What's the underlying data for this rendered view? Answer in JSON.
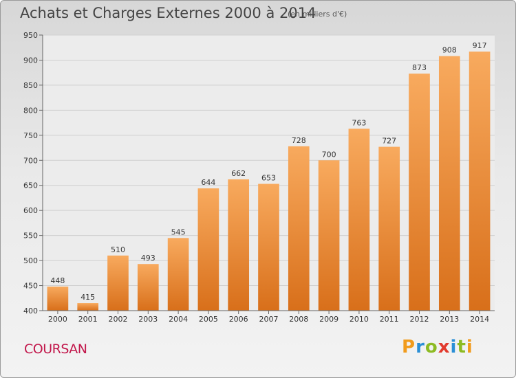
{
  "header": {
    "title": "Achats et Charges Externes 2000 à 2014",
    "unit": "(en milliers d'€)"
  },
  "footer": {
    "city": "COURSAN",
    "logo": "Proxiti"
  },
  "chart_data": {
    "type": "bar",
    "title": "Achats et Charges Externes 2000 à 2014",
    "subtitle": "(en milliers d'€)",
    "xlabel": "",
    "ylabel": "",
    "categories": [
      "2000",
      "2001",
      "2002",
      "2003",
      "2004",
      "2005",
      "2006",
      "2007",
      "2008",
      "2009",
      "2010",
      "2011",
      "2012",
      "2013",
      "2014"
    ],
    "values": [
      448,
      415,
      510,
      493,
      545,
      644,
      662,
      653,
      728,
      700,
      763,
      727,
      873,
      908,
      917
    ],
    "ylim": [
      400,
      950
    ],
    "yticks": [
      400,
      450,
      500,
      550,
      600,
      650,
      700,
      750,
      800,
      850,
      900,
      950
    ],
    "grid": true,
    "bar_color": "#f08a2c",
    "bar_color_light": "#f8aa5e",
    "bar_color_dark": "#d86f1a"
  }
}
